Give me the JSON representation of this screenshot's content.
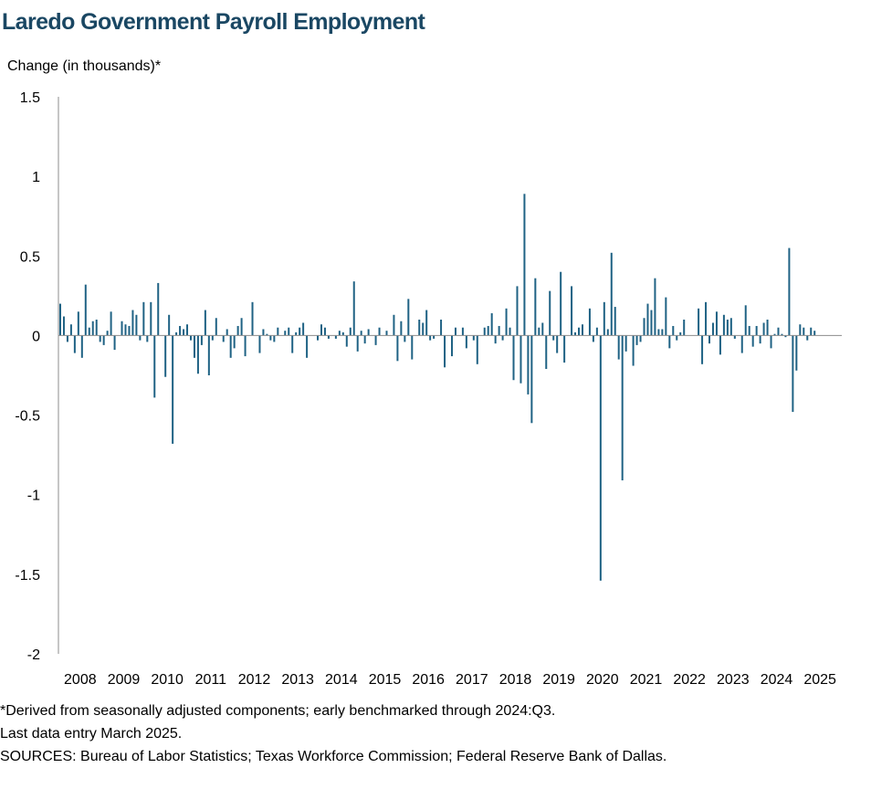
{
  "header": {
    "title": "Laredo Government Payroll Employment",
    "y_unit_label": "Change (in thousands)*"
  },
  "footnotes": {
    "note": "*Derived from seasonally adjusted components; early benchmarked through 2024:Q3.",
    "last_entry": "Last data entry March 2025.",
    "sources": "SOURCES:  Bureau of Labor Statistics; Texas Workforce Commission;  Federal Reserve Bank of Dallas."
  },
  "colors": {
    "bar": "#1f6284",
    "axis": "#8c8c8c",
    "title": "#1a4763"
  },
  "chart_data": {
    "type": "bar",
    "title": "Laredo Government Payroll Employment",
    "ylabel": "Change (in thousands)*",
    "xlabel": "",
    "ylim": [
      -2,
      1.5
    ],
    "y_ticks": [
      "1.5",
      "1",
      "0.5",
      "0",
      "-0.5",
      "-1",
      "-1.5",
      "-2"
    ],
    "x_tick_labels": [
      "2008",
      "2009",
      "2010",
      "2011",
      "2012",
      "2013",
      "2014",
      "2015",
      "2016",
      "2017",
      "2018",
      "2019",
      "2020",
      "2021",
      "2022",
      "2023",
      "2024",
      "2025"
    ],
    "start": "2008-01",
    "frequency": "monthly",
    "grid": false,
    "series": [
      {
        "values": [
          0.2,
          0.12,
          -0.04,
          0.07,
          -0.11,
          0.15,
          -0.14,
          0.32,
          0.05,
          0.09,
          0.1,
          -0.04,
          -0.06,
          0.03,
          0.15,
          -0.09,
          0.0,
          0.09,
          0.07,
          0.06,
          0.16,
          0.13,
          -0.03,
          0.21,
          -0.04,
          0.21,
          -0.39,
          0.33,
          0.0,
          -0.26,
          0.13,
          -0.68,
          0.02,
          0.06,
          0.04,
          0.07,
          -0.03,
          -0.14,
          -0.24,
          -0.06,
          0.16,
          -0.25,
          -0.03,
          0.11,
          0.0,
          -0.04,
          0.04,
          -0.14,
          -0.08,
          0.06,
          0.11,
          -0.13,
          0.0,
          0.21,
          0.0,
          -0.11,
          0.04,
          0.01,
          -0.03,
          -0.04,
          0.05,
          0.0,
          0.03,
          0.05,
          -0.11,
          0.02,
          0.05,
          0.08,
          -0.14,
          0.0,
          0.0,
          -0.03,
          0.07,
          0.05,
          -0.02,
          0.0,
          -0.02,
          0.03,
          0.02,
          -0.07,
          0.05,
          0.34,
          -0.1,
          0.03,
          -0.05,
          0.04,
          0.0,
          -0.06,
          0.05,
          0.0,
          0.03,
          0.0,
          0.13,
          -0.16,
          0.09,
          -0.04,
          0.23,
          -0.15,
          0.0,
          0.1,
          0.08,
          0.16,
          -0.03,
          -0.02,
          0.0,
          0.1,
          -0.2,
          0.0,
          -0.13,
          0.05,
          0.0,
          0.05,
          -0.08,
          0.0,
          -0.03,
          -0.18,
          0.0,
          0.05,
          0.06,
          0.14,
          -0.05,
          0.06,
          -0.03,
          0.17,
          0.05,
          -0.28,
          0.31,
          -0.3,
          0.89,
          -0.37,
          -0.55,
          0.36,
          0.05,
          0.08,
          -0.21,
          0.28,
          -0.03,
          -0.11,
          0.4,
          -0.17,
          0.0,
          0.31,
          0.02,
          0.05,
          0.07,
          0.0,
          0.17,
          -0.04,
          0.05,
          -1.54,
          0.21,
          0.04,
          0.52,
          0.18,
          -0.15,
          -0.91,
          -0.1,
          0.0,
          -0.19,
          -0.06,
          -0.04,
          0.11,
          0.2,
          0.16,
          0.36,
          0.04,
          0.04,
          0.24,
          -0.08,
          0.06,
          -0.03,
          0.02,
          0.1,
          0.0,
          0.0,
          0.0,
          0.17,
          -0.18,
          0.21,
          -0.05,
          0.08,
          0.15,
          -0.12,
          0.13,
          0.1,
          0.11,
          -0.02,
          0.0,
          -0.11,
          0.19,
          0.06,
          -0.07,
          0.06,
          -0.05,
          0.08,
          0.1,
          -0.08,
          0.01,
          0.05,
          0.01,
          -0.01,
          0.55,
          -0.48,
          -0.22,
          0.07,
          0.05,
          -0.03,
          0.05,
          0.03
        ]
      }
    ]
  }
}
